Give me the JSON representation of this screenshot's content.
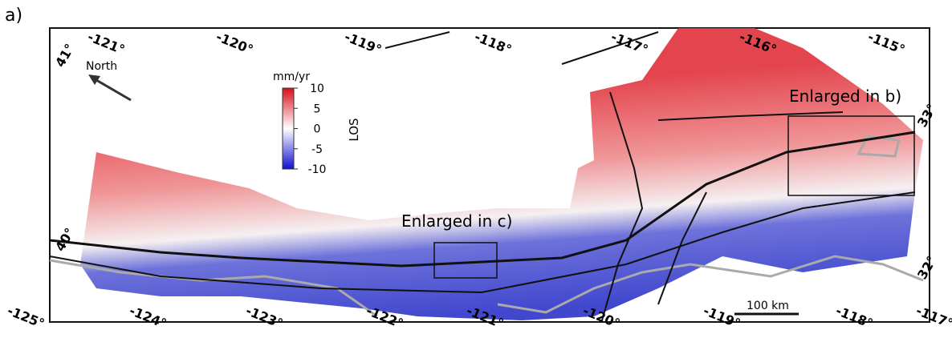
{
  "panel_label": "a)",
  "top_labels": [
    "-121°",
    "-120°",
    "-119°",
    "-118°",
    "-117°",
    "-116°",
    "-115°"
  ],
  "bottom_labels": [
    "-125°",
    "-124°",
    "-123°",
    "-122°",
    "-121°",
    "-120°",
    "-119°",
    "-118°",
    "-117°"
  ],
  "left_labels": [
    "41°",
    "40°"
  ],
  "right_labels": [
    "33°",
    "32°"
  ],
  "north_label": "North",
  "colorbar": {
    "unit": "mm/yr",
    "label": "LOS",
    "lim": [
      -10,
      10
    ],
    "ticks": [
      10,
      5,
      0,
      -5,
      -10
    ]
  },
  "boxes": [
    {
      "label": "Enlarged in b)"
    },
    {
      "label": "Enlarged in c)"
    }
  ],
  "scale_bar": "100 km"
}
